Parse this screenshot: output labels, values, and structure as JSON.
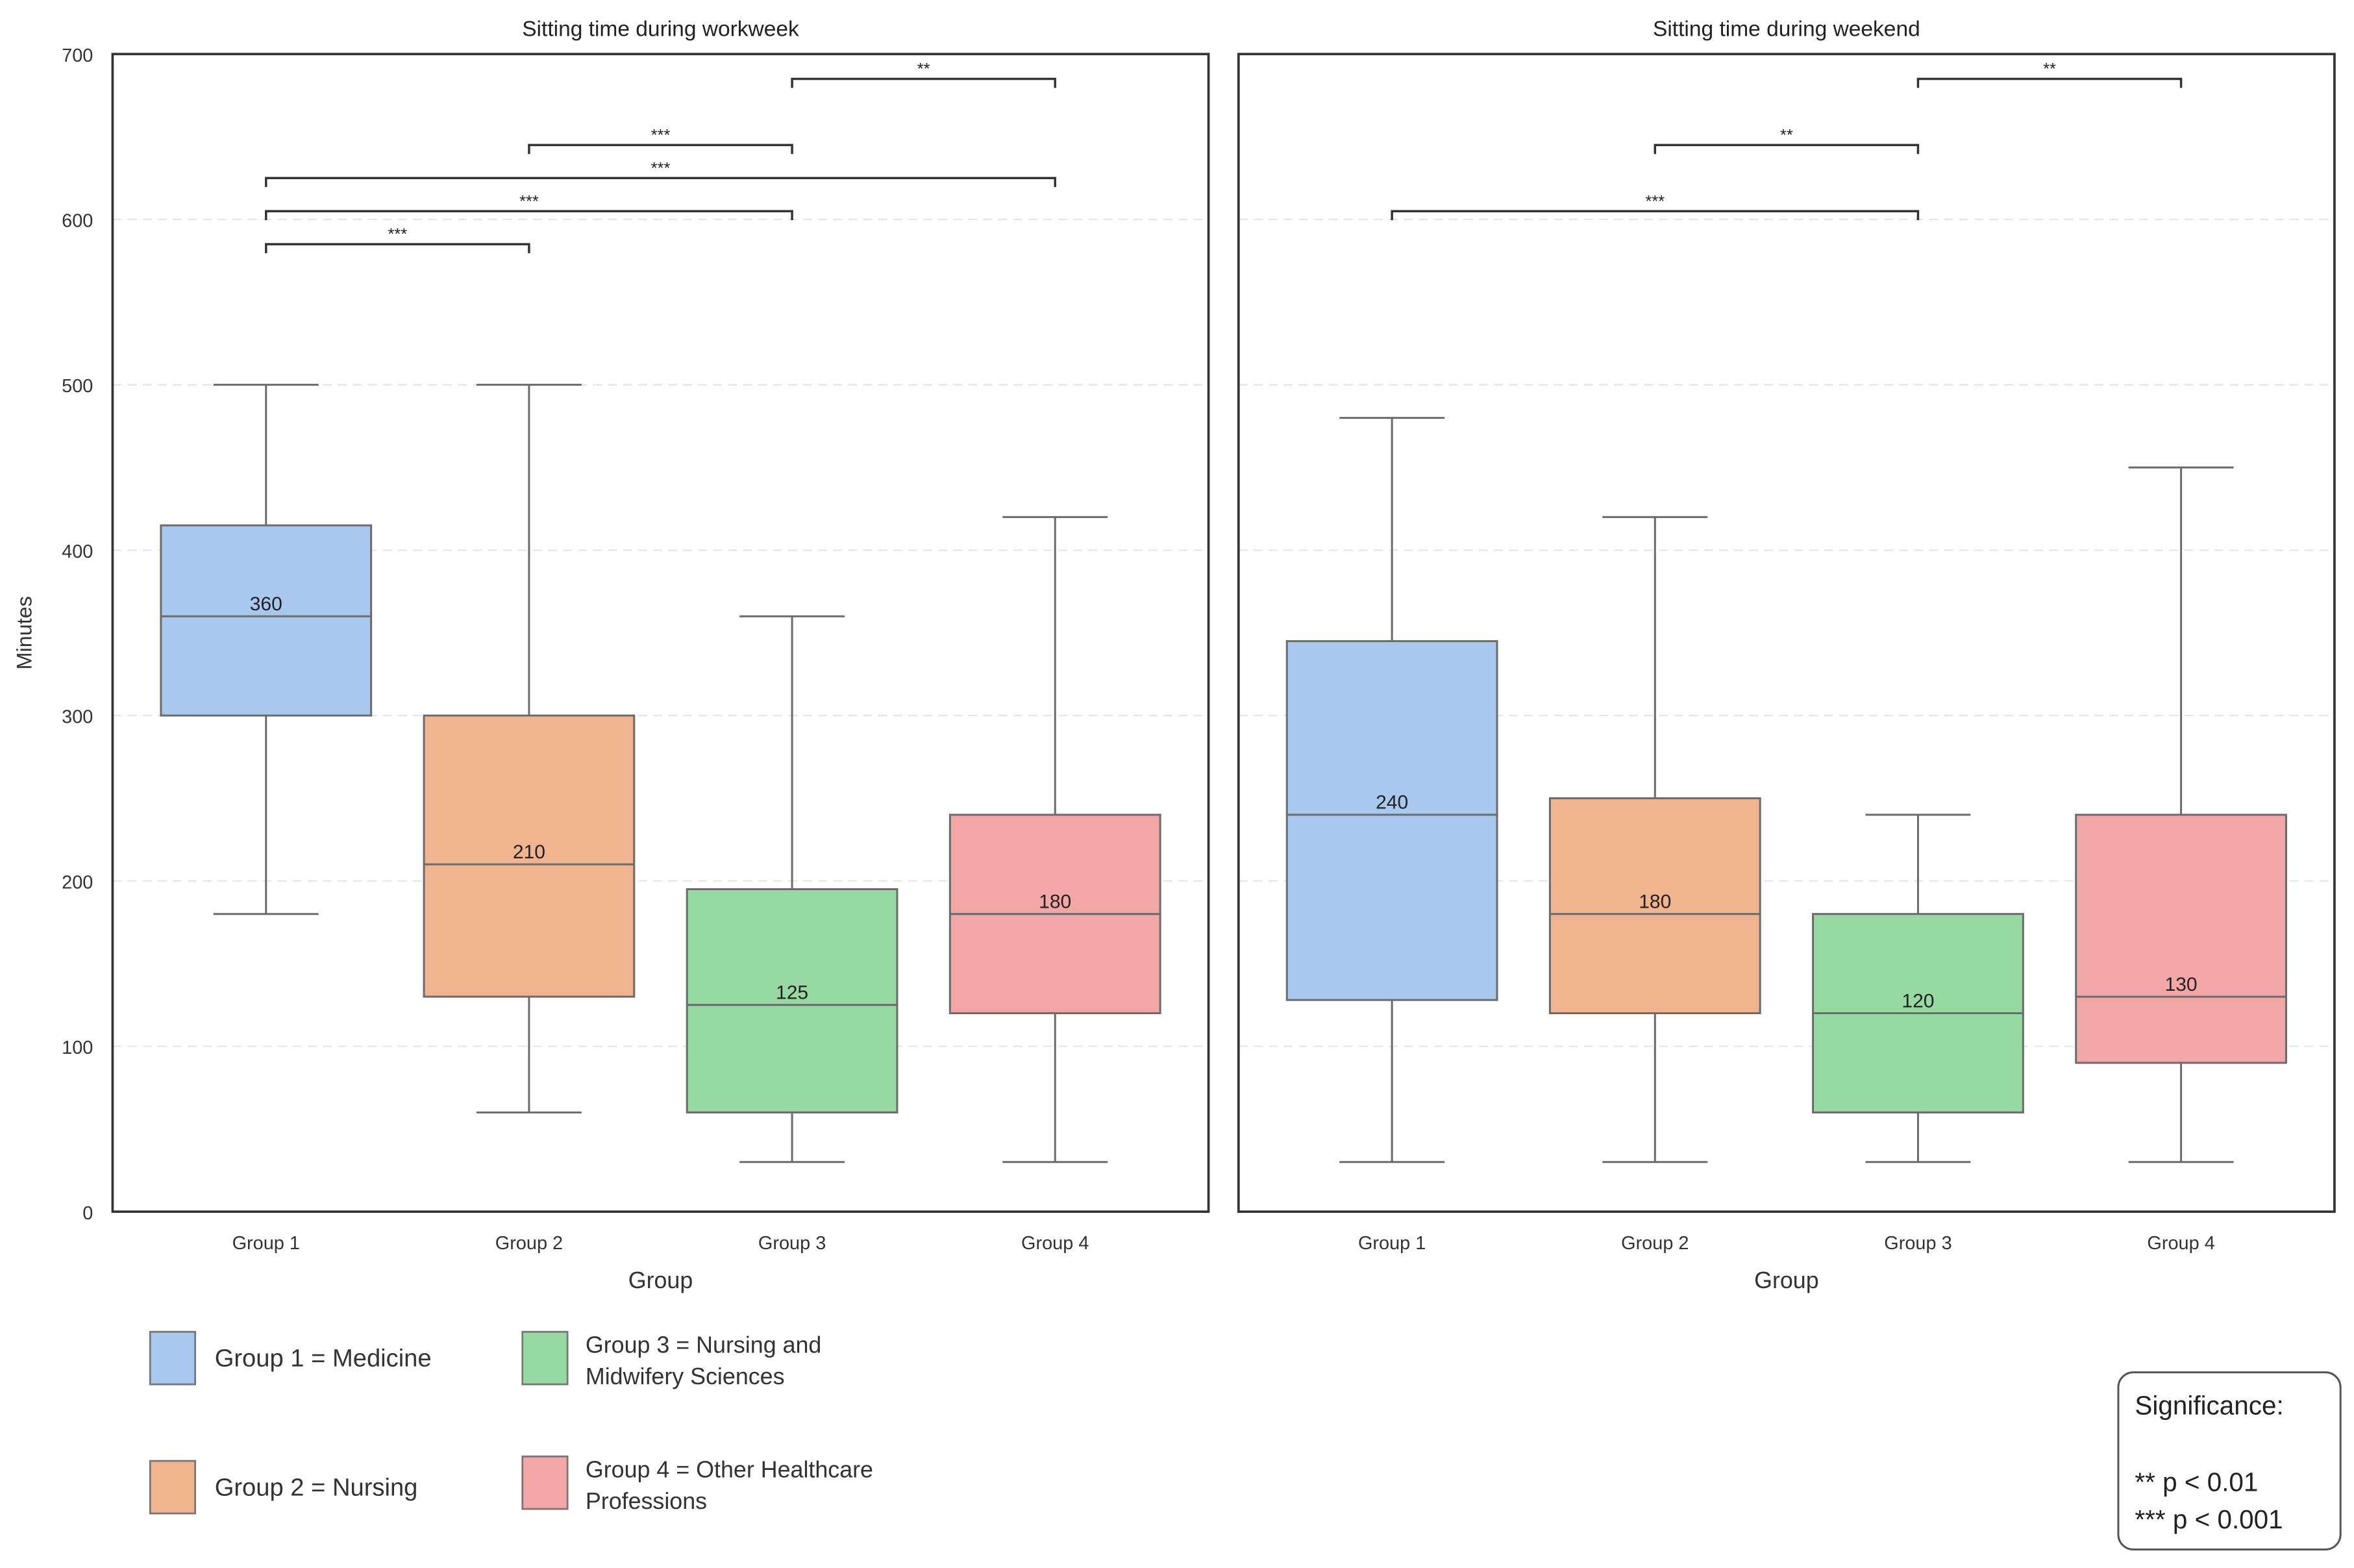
{
  "chart_data": {
    "type": "boxplot",
    "xlabel": "Group",
    "ylabel": "Minutes",
    "ylim": [
      0,
      700
    ],
    "yticks": [
      0,
      100,
      200,
      300,
      400,
      500,
      600,
      700
    ],
    "grid": "horizontal dashed",
    "categories": [
      "Group 1",
      "Group 2",
      "Group 3",
      "Group 4"
    ],
    "colors": {
      "Group 1": "#a9c8ed",
      "Group 2": "#f0b48e",
      "Group 3": "#96d9a3",
      "Group 4": "#f2a7a6"
    },
    "panels": [
      {
        "title": "Sitting time during workweek",
        "boxes": [
          {
            "group": "Group 1",
            "whisker_low": 180,
            "q1": 300,
            "median": 360,
            "q3": 415,
            "whisker_high": 500
          },
          {
            "group": "Group 2",
            "whisker_low": 60,
            "q1": 130,
            "median": 210,
            "q3": 300,
            "whisker_high": 500
          },
          {
            "group": "Group 3",
            "whisker_low": 30,
            "q1": 60,
            "median": 125,
            "q3": 195,
            "whisker_high": 360
          },
          {
            "group": "Group 4",
            "whisker_low": 30,
            "q1": 120,
            "median": 180,
            "q3": 240,
            "whisker_high": 420
          }
        ],
        "brackets": [
          {
            "from": "Group 1",
            "to": "Group 2",
            "label": "***",
            "y": 585
          },
          {
            "from": "Group 1",
            "to": "Group 3",
            "label": "***",
            "y": 605
          },
          {
            "from": "Group 1",
            "to": "Group 4",
            "label": "***",
            "y": 625
          },
          {
            "from": "Group 2",
            "to": "Group 3",
            "label": "***",
            "y": 645
          },
          {
            "from": "Group 3",
            "to": "Group 4",
            "label": "**",
            "y": 685
          }
        ]
      },
      {
        "title": "Sitting time during weekend",
        "boxes": [
          {
            "group": "Group 1",
            "whisker_low": 30,
            "q1": 128,
            "median": 240,
            "q3": 345,
            "whisker_high": 480
          },
          {
            "group": "Group 2",
            "whisker_low": 30,
            "q1": 120,
            "median": 180,
            "q3": 250,
            "whisker_high": 420
          },
          {
            "group": "Group 3",
            "whisker_low": 30,
            "q1": 60,
            "median": 120,
            "q3": 180,
            "whisker_high": 240
          },
          {
            "group": "Group 4",
            "whisker_low": 30,
            "q1": 90,
            "median": 130,
            "q3": 240,
            "whisker_high": 450
          }
        ],
        "brackets": [
          {
            "from": "Group 1",
            "to": "Group 3",
            "label": "***",
            "y": 605
          },
          {
            "from": "Group 2",
            "to": "Group 3",
            "label": "**",
            "y": 645
          },
          {
            "from": "Group 3",
            "to": "Group 4",
            "label": "**",
            "y": 685
          }
        ]
      }
    ],
    "legend": [
      {
        "group": "Group 1",
        "lines": [
          "Group 1 = Medicine"
        ]
      },
      {
        "group": "Group 3",
        "lines": [
          "Group 3 = Nursing and",
          "Midwifery Sciences"
        ]
      },
      {
        "group": "Group 2",
        "lines": [
          "Group 2 = Nursing"
        ]
      },
      {
        "group": "Group 4",
        "lines": [
          "Group 4 = Other Healthcare",
          "Professions"
        ]
      }
    ],
    "significance": {
      "title": "Significance:",
      "lines": [
        "** p < 0.01",
        "*** p < 0.001"
      ]
    }
  }
}
